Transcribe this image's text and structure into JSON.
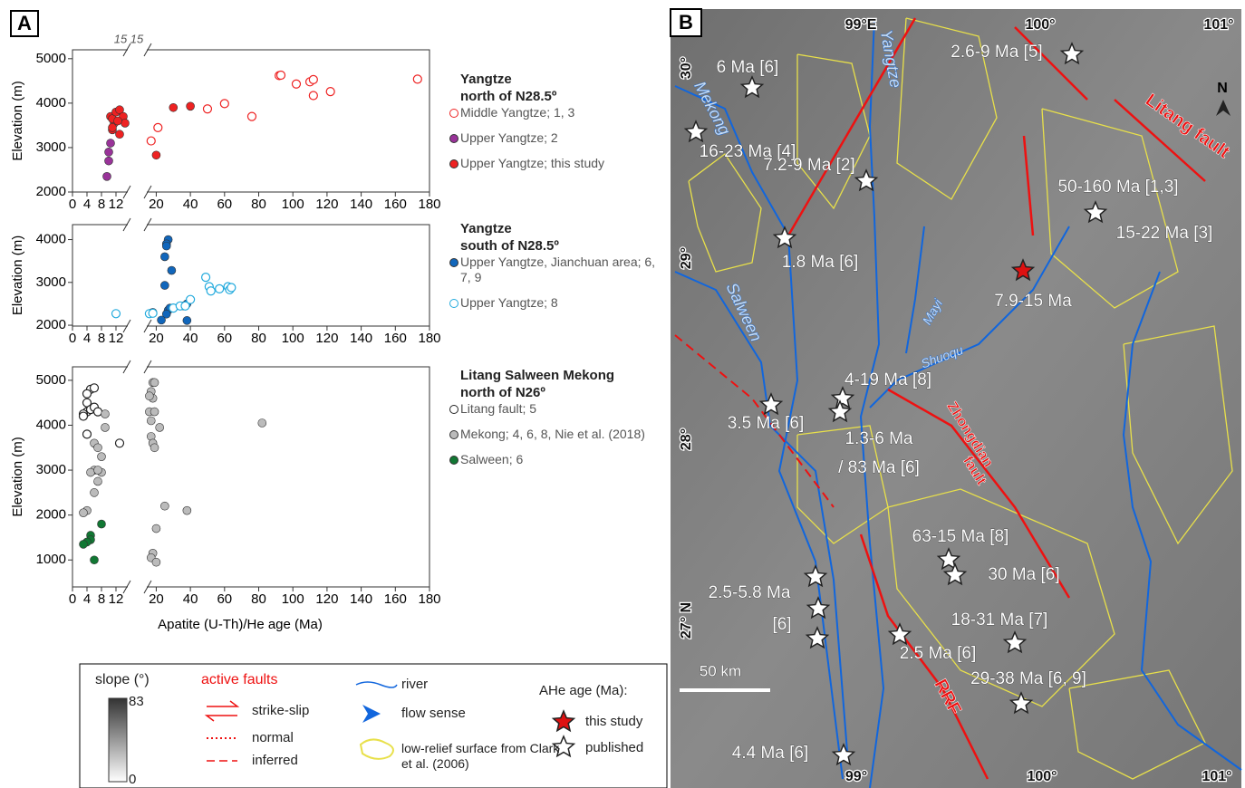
{
  "panel_label": "A",
  "xlabel": "Apatite (U-Th)/He age (Ma)",
  "chart_data": [
    {
      "type": "scatter",
      "title": [
        "Yangtze",
        "north of N28.5º"
      ],
      "ylabel": "Elevation (m)",
      "xlim": [
        0,
        180
      ],
      "xbreak": [
        15,
        15
      ],
      "xticks": [
        0,
        4,
        8,
        12,
        20,
        40,
        60,
        80,
        100,
        120,
        140,
        160,
        180
      ],
      "ylim": [
        2000,
        5200
      ],
      "yticks": [
        2000,
        3000,
        4000,
        5000
      ],
      "series": [
        {
          "name": "Middle Yangtze; 1, 3",
          "color": "#ee2222",
          "marker": "open",
          "x": [
            92,
            93,
            102,
            110,
            112,
            112,
            122,
            173,
            60,
            50,
            76,
            21,
            17
          ],
          "values": [
            4620,
            4630,
            4430,
            4480,
            4530,
            4170,
            4260,
            4540,
            3990,
            3870,
            3700,
            3450,
            3150
          ]
        },
        {
          "name": "Upper Yangtze; 2",
          "color": "#993399",
          "marker": "filled",
          "x": [
            9.5,
            10,
            10,
            10.5
          ],
          "values": [
            2350,
            2700,
            2900,
            3100
          ]
        },
        {
          "name": "Upper Yangtze; this study",
          "color": "#ee2222",
          "marker": "filled",
          "x": [
            11,
            11.5,
            10.5,
            11,
            12,
            13,
            14,
            14.5,
            13,
            20,
            30,
            40,
            12.5,
            11
          ],
          "values": [
            3400,
            3550,
            3700,
            3650,
            3800,
            3850,
            3700,
            3550,
            3300,
            2830,
            3900,
            3930,
            3600,
            3450
          ]
        }
      ]
    },
    {
      "type": "scatter",
      "title": [
        "Yangtze",
        "south of N28.5º"
      ],
      "ylabel": "Elevation (m)",
      "xlim": [
        0,
        180
      ],
      "xbreak": [
        15,
        15
      ],
      "xticks": [
        0,
        4,
        8,
        12,
        20,
        40,
        60,
        80,
        100,
        120,
        140,
        160,
        180
      ],
      "ylim": [
        1980,
        4350
      ],
      "yticks": [
        2000,
        3000,
        4000
      ],
      "series": [
        {
          "name": "Upper Yangtze, Jianchuan area; 6, 7, 9",
          "color": "#1166bb",
          "marker": "filled",
          "x": [
            27,
            26,
            25,
            26,
            29,
            25,
            18,
            17,
            27,
            28,
            26,
            23,
            36,
            38,
            38
          ],
          "values": [
            4000,
            3900,
            3600,
            3850,
            3280,
            2930,
            2300,
            2280,
            2350,
            2400,
            2260,
            2120,
            2450,
            2500,
            2110
          ]
        },
        {
          "name": "Upper Yangtze; 8",
          "color": "#22aadd",
          "marker": "open",
          "x": [
            12,
            16,
            18,
            30,
            34,
            37,
            40,
            49,
            51,
            52,
            57,
            62,
            63,
            64
          ],
          "values": [
            2270,
            2270,
            2280,
            2400,
            2450,
            2450,
            2600,
            3120,
            2900,
            2800,
            2850,
            2900,
            2830,
            2880
          ]
        }
      ]
    },
    {
      "type": "scatter",
      "title": [
        "Litang Salween Mekong",
        "north of N26º"
      ],
      "ylabel": "Elevation (m)",
      "xlim": [
        0,
        180
      ],
      "xbreak": [
        15,
        15
      ],
      "xticks": [
        0,
        4,
        8,
        12,
        20,
        40,
        60,
        80,
        100,
        120,
        140,
        160,
        180
      ],
      "ylim": [
        400,
        5300
      ],
      "yticks": [
        1000,
        2000,
        3000,
        4000,
        5000
      ],
      "series": [
        {
          "name": "Litang fault; 5",
          "color": "#222222",
          "marker": "open",
          "x": [
            5,
            6,
            4,
            4,
            4,
            3,
            5,
            6,
            7,
            3,
            4,
            13
          ],
          "values": [
            4800,
            4830,
            4700,
            4500,
            4300,
            4250,
            4350,
            4400,
            4300,
            4200,
            3800,
            3600
          ]
        },
        {
          "name": "Mekong; 4, 6, 8, Nie et al. (2018)",
          "color": "#bbbbbb",
          "marker": "filled",
          "x": [
            4,
            3,
            6,
            7,
            8,
            6,
            5,
            8,
            7,
            6,
            9,
            9,
            7,
            18,
            19,
            17,
            18,
            16,
            19,
            17,
            17,
            18,
            19,
            22,
            25,
            20,
            18,
            17,
            20,
            38,
            82,
            16
          ],
          "values": [
            2100,
            2050,
            3600,
            3500,
            3300,
            3000,
            2950,
            2950,
            2750,
            2500,
            4250,
            3950,
            3000,
            4950,
            4950,
            4750,
            4600,
            4300,
            4300,
            4100,
            3750,
            3600,
            3500,
            3950,
            2200,
            1700,
            1150,
            1050,
            950,
            2100,
            4050,
            4650
          ]
        },
        {
          "name": "Salween; 6",
          "color": "#117733",
          "marker": "filled",
          "x": [
            5,
            5,
            4,
            3,
            8,
            6
          ],
          "values": [
            1550,
            1450,
            1400,
            1350,
            1800,
            1000
          ]
        }
      ]
    }
  ],
  "map": {
    "panel_label": "B",
    "coordinates": [
      "99°E",
      "100°",
      "101°",
      "30°",
      "29°",
      "28°",
      "27° N",
      "99°",
      "100°",
      "101°"
    ],
    "rivers": [
      "Mekong",
      "Yangtze",
      "Salween",
      "Mayi",
      "Shuoqu"
    ],
    "faults": [
      "Litang fault",
      "Zhongdian",
      "fault",
      "RRF"
    ],
    "samples": [
      "6 Ma [6]",
      "16-23 Ma  [4]",
      "7.2-9 Ma  [2]",
      "1.8 Ma [6]",
      "2.6-9 Ma  [5]",
      "50-160 Ma  [1,3]",
      "15-22 Ma [3]",
      "7.9-15 Ma",
      "4-19 Ma  [8]",
      "3.5 Ma  [6]",
      "1.3-6 Ma",
      "/ 83 Ma [6]",
      "63-15 Ma [8]",
      "30 Ma [6]",
      "2.5-5.8 Ma",
      "[6]",
      "18-31 Ma [7]",
      "2.5 Ma [6]",
      "29-38 Ma [6, 9]",
      "4.4 Ma [6]"
    ],
    "scale_bar": "50 km",
    "north": "N"
  },
  "legend": {
    "slope_title": "slope (°)",
    "slope_range": [
      0,
      83
    ],
    "active_faults": "active faults",
    "fault_types": [
      "strike-slip",
      "normal",
      "inferred"
    ],
    "river": "river",
    "flow_sense": "flow sense",
    "low_relief": "low-relief surface from Clark et al. (2006)",
    "ahe_title": "AHe age (Ma):",
    "ahe_types": [
      "this study",
      "published"
    ]
  }
}
